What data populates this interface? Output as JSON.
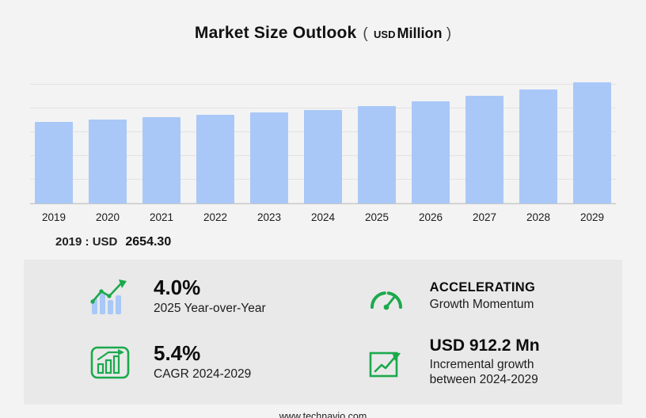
{
  "theme": {
    "page_bg": "#f3f3f3",
    "panel_bg": "#e9e9e9",
    "bar_color": "#a9c8f7",
    "accent_green": "#1ba94c"
  },
  "header": {
    "title": "Market Size Outlook",
    "unit_open": "(",
    "unit_currency": "USD",
    "unit_label": "Million",
    "unit_close": ")"
  },
  "chart_note": {
    "label": "2019 : USD",
    "value": "2654.30"
  },
  "chart_data": {
    "type": "bar",
    "title": "Market Size Outlook (USD Million)",
    "categories": [
      "2019",
      "2020",
      "2021",
      "2022",
      "2023",
      "2024",
      "2025",
      "2026",
      "2027",
      "2028",
      "2029"
    ],
    "values": [
      2654.3,
      2725.5,
      2798.7,
      2873.8,
      2950.9,
      3032.4,
      3153.7,
      3307.0,
      3486.0,
      3695.0,
      3944.6
    ],
    "xlabel": "",
    "ylabel": "",
    "ylim": [
      0,
      4600
    ],
    "grid": true,
    "legend": "none",
    "bar_color": "#a9c8f7"
  },
  "stats": {
    "yoy": {
      "value": "4.0%",
      "label": "2025 Year-over-Year"
    },
    "momentum": {
      "value": "ACCELERATING",
      "label": "Growth Momentum"
    },
    "cagr": {
      "value": "5.4%",
      "label": "CAGR 2024-2029"
    },
    "incremental": {
      "value": "USD 912.2 Mn",
      "label": "Incremental growth",
      "label2": "between 2024-2029"
    }
  },
  "footer": {
    "url": "www.technavio.com"
  }
}
